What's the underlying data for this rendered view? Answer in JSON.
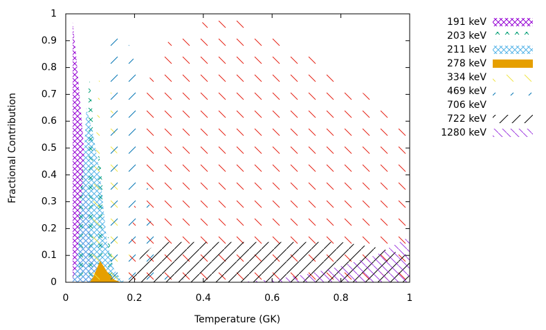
{
  "chart_data": {
    "type": "area",
    "xlabel": "Temperature (GK)",
    "ylabel": "Fractional Contribution",
    "x": [
      0.02,
      0.03,
      0.04,
      0.05,
      0.06,
      0.07,
      0.08,
      0.1,
      0.12,
      0.14,
      0.16,
      0.18,
      0.2,
      0.22,
      0.25,
      0.3,
      0.4,
      0.5,
      0.6,
      0.7,
      0.8,
      0.9,
      1
    ],
    "xlim": [
      0,
      1
    ],
    "ylim": [
      0,
      1
    ],
    "xticks": [
      0,
      0.2,
      0.4,
      0.6,
      0.8,
      1
    ],
    "yticks": [
      0,
      0.1,
      0.2,
      0.3,
      0.4,
      0.5,
      0.6,
      0.7,
      0.8,
      0.9,
      1
    ],
    "series": [
      {
        "name": "191 keV",
        "color": "#9400d3",
        "values": [
          0.97,
          0.85,
          0.7,
          0.55,
          0.35,
          0.2,
          0.1,
          0.03,
          0.01,
          0,
          0,
          0,
          0,
          0,
          0,
          0,
          0,
          0,
          0,
          0,
          0,
          0,
          0
        ]
      },
      {
        "name": "203 keV",
        "color": "#009e73",
        "values": [
          0.02,
          0.1,
          0.3,
          0.45,
          0.7,
          0.75,
          0.6,
          0.45,
          0.2,
          0.05,
          0.01,
          0,
          0,
          0,
          0,
          0,
          0,
          0,
          0,
          0,
          0,
          0,
          0
        ]
      },
      {
        "name": "211 keV",
        "color": "#56b4e9",
        "values": [
          0.01,
          0.05,
          0.2,
          0.4,
          0.65,
          0.6,
          0.55,
          0.4,
          0.15,
          0.05,
          0.01,
          0,
          0,
          0,
          0,
          0,
          0,
          0,
          0,
          0,
          0,
          0,
          0
        ]
      },
      {
        "name": "278 keV",
        "color": "#e69f00",
        "values": [
          0,
          0,
          0,
          0,
          0,
          0,
          0.02,
          0.08,
          0.04,
          0.01,
          0,
          0,
          0,
          0,
          0,
          0,
          0,
          0,
          0,
          0,
          0,
          0,
          0
        ]
      },
      {
        "name": "334 keV",
        "color": "#f0e442",
        "values": [
          0,
          0,
          0,
          0,
          0,
          0,
          0.3,
          0.85,
          0.9,
          0.6,
          0.35,
          0.15,
          0.05,
          0,
          0,
          0,
          0,
          0,
          0,
          0,
          0,
          0,
          0
        ]
      },
      {
        "name": "469 keV",
        "color": "#0072b2",
        "values": [
          0,
          0,
          0,
          0,
          0,
          0,
          0,
          0,
          0.85,
          0.95,
          0.98,
          0.9,
          0.82,
          0.6,
          0.2,
          0.02,
          0,
          0,
          0,
          0,
          0,
          0,
          0
        ]
      },
      {
        "name": "706 keV",
        "color": "#e51e10",
        "values": [
          0,
          0,
          0,
          0,
          0,
          0,
          0,
          0,
          0,
          0,
          0,
          0,
          0.3,
          0.6,
          0.8,
          0.9,
          0.97,
          0.98,
          0.92,
          0.85,
          0.75,
          0.68,
          0.6
        ]
      },
      {
        "name": "722 keV",
        "color": "#000000",
        "values": [
          0,
          0,
          0,
          0,
          0,
          0,
          0,
          0,
          0,
          0,
          0,
          0,
          0.05,
          0.1,
          0.13,
          0.15,
          0.15,
          0.15,
          0.15,
          0.15,
          0.15,
          0.13,
          0.1
        ]
      },
      {
        "name": "1280 keV",
        "color": "#a040e0",
        "values": [
          0,
          0,
          0,
          0,
          0,
          0,
          0,
          0,
          0,
          0,
          0,
          0,
          0,
          0,
          0,
          0,
          0,
          0,
          0.01,
          0.03,
          0.06,
          0.1,
          0.17
        ]
      }
    ]
  }
}
